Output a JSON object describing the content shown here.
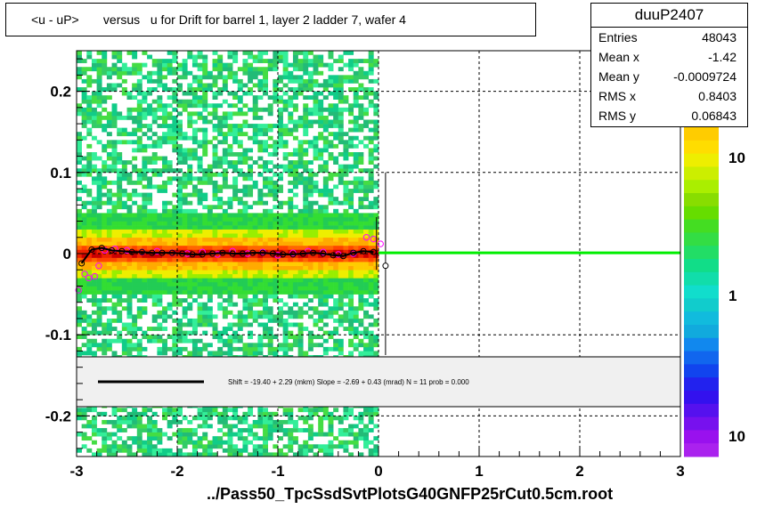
{
  "title": "<u - uP>       versus   u for Drift for barrel 1, layer 2 ladder 7, wafer 4",
  "stats": {
    "name": "duuP2407",
    "rows": [
      {
        "label": "Entries",
        "value": "48043"
      },
      {
        "label": "Mean x",
        "value": "-1.42"
      },
      {
        "label": "Mean y",
        "value": "-0.0009724"
      },
      {
        "label": "RMS x",
        "value": "0.8403"
      },
      {
        "label": "RMS y",
        "value": "0.06843"
      }
    ]
  },
  "fit_text": "Shift =   -19.40 + 2.29 (mkm) Slope =    -2.69 + 0.43 (mrad)  N = 11 prob = 0.000",
  "xaxis_label": "../Pass50_TpcSsdSvtPlotsG40GNFP25rCut0.5cm.root",
  "colors": {
    "fit_line": "#00ee00",
    "legend_line": "#000000",
    "profile_black": "#000000",
    "profile_magenta": "#ff00ff"
  },
  "chart_data": {
    "type": "heatmap",
    "title": "<u - uP>       versus   u for Drift for barrel 1, layer 2 ladder 7, wafer 4",
    "xlim": [
      -3,
      3
    ],
    "ylim": [
      -0.25,
      0.25
    ],
    "x_ticks": [
      -3,
      -2,
      -1,
      0,
      1,
      2,
      3
    ],
    "x_tick_labels": [
      "-3",
      "-2",
      "-1",
      "0",
      "1",
      "2",
      "3"
    ],
    "y_ticks": [
      -0.2,
      -0.1,
      0,
      0.1,
      0.2
    ],
    "y_tick_labels": [
      "-0.2",
      "-0.1",
      "0",
      "0.1",
      "0.2"
    ],
    "z_scale": "log",
    "z_tick_labels": [
      "10",
      "1",
      "10"
    ],
    "grid": true,
    "fill_x_range": [
      -3,
      0
    ],
    "core_y": 0.0,
    "profile_black": {
      "x": [
        -2.95,
        -2.85,
        -2.75,
        -2.65,
        -2.55,
        -2.45,
        -2.35,
        -2.25,
        -2.15,
        -2.05,
        -1.95,
        -1.85,
        -1.75,
        -1.65,
        -1.55,
        -1.45,
        -1.35,
        -1.25,
        -1.15,
        -1.05,
        -0.95,
        -0.85,
        -0.75,
        -0.65,
        -0.55,
        -0.45,
        -0.35,
        -0.25,
        -0.15,
        -0.05
      ],
      "y": [
        -0.012,
        0.005,
        0.007,
        0.004,
        0.003,
        0.002,
        0.002,
        0.001,
        0.001,
        0.001,
        0.0,
        -0.001,
        -0.001,
        0.0,
        0.001,
        0.0,
        0.0,
        0.001,
        0.001,
        0.0,
        -0.001,
        -0.001,
        0.0,
        0.001,
        0.0,
        -0.002,
        -0.003,
        0.001,
        0.003,
        0.002
      ]
    },
    "profile_magenta": {
      "x": [
        -2.98,
        -2.92,
        -2.88,
        -2.82,
        -2.78,
        -2.72,
        -2.62,
        -2.5,
        -2.35,
        -2.2,
        -2.05,
        -1.9,
        -1.75,
        -1.6,
        -1.45,
        -1.3,
        -1.15,
        -1.0,
        -0.85,
        -0.7,
        -0.55,
        -0.4,
        -0.25,
        -0.12,
        -0.05,
        0.02
      ],
      "y": [
        -0.045,
        -0.025,
        -0.03,
        -0.028,
        -0.015,
        0.004,
        0.006,
        0.004,
        0.002,
        0.003,
        0.001,
        0.0,
        0.002,
        -0.001,
        0.003,
        0.0,
        0.002,
        -0.002,
        0.001,
        0.003,
        0.002,
        -0.001,
        0.0,
        0.02,
        0.018,
        0.012
      ]
    },
    "open_point": {
      "x": 0.07,
      "y": -0.015
    },
    "fit_line": {
      "x": [
        0.0,
        3.0
      ],
      "y": [
        0.001,
        0.001
      ]
    }
  }
}
